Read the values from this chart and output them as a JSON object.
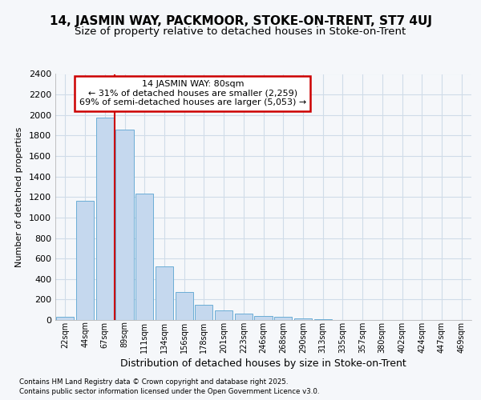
{
  "title1": "14, JASMIN WAY, PACKMOOR, STOKE-ON-TRENT, ST7 4UJ",
  "title2": "Size of property relative to detached houses in Stoke-on-Trent",
  "xlabel": "Distribution of detached houses by size in Stoke-on-Trent",
  "ylabel": "Number of detached properties",
  "categories": [
    "22sqm",
    "44sqm",
    "67sqm",
    "89sqm",
    "111sqm",
    "134sqm",
    "156sqm",
    "178sqm",
    "201sqm",
    "223sqm",
    "246sqm",
    "268sqm",
    "290sqm",
    "313sqm",
    "335sqm",
    "357sqm",
    "380sqm",
    "402sqm",
    "424sqm",
    "447sqm",
    "469sqm"
  ],
  "values": [
    30,
    1160,
    1975,
    1855,
    1235,
    525,
    275,
    150,
    90,
    60,
    40,
    30,
    15,
    5,
    2,
    1,
    0,
    0,
    0,
    0,
    0
  ],
  "bar_color": "#c5d8ee",
  "bar_edge_color": "#6badd6",
  "vline_x": 2.5,
  "vline_color": "#cc0000",
  "annotation_title": "14 JASMIN WAY: 80sqm",
  "annotation_line1": "← 31% of detached houses are smaller (2,259)",
  "annotation_line2": "69% of semi-detached houses are larger (5,053) →",
  "annotation_box_color": "#ffffff",
  "annotation_border_color": "#cc0000",
  "ylim": [
    0,
    2400
  ],
  "yticks": [
    0,
    200,
    400,
    600,
    800,
    1000,
    1200,
    1400,
    1600,
    1800,
    2000,
    2200,
    2400
  ],
  "footer1": "Contains HM Land Registry data © Crown copyright and database right 2025.",
  "footer2": "Contains public sector information licensed under the Open Government Licence v3.0.",
  "bg_color": "#f5f7fa",
  "grid_color": "#d0dce8",
  "title1_fontsize": 11,
  "title2_fontsize": 9.5
}
